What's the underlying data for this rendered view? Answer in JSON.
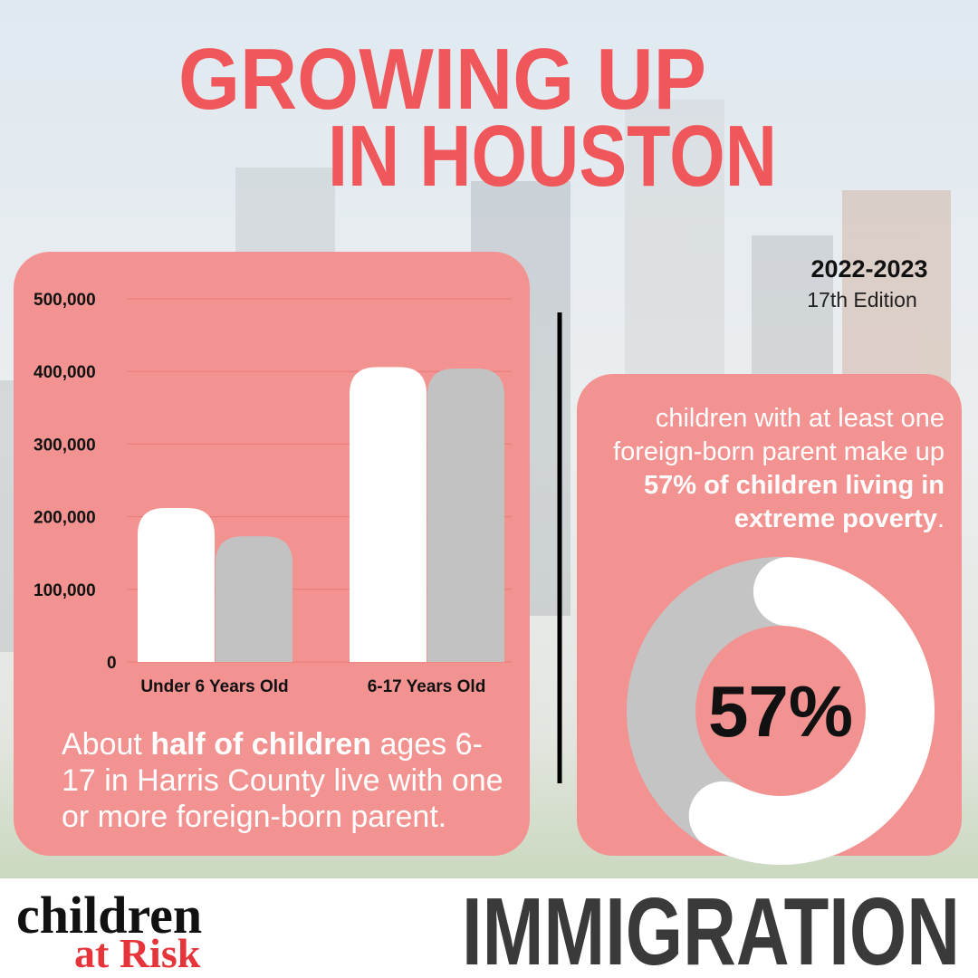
{
  "header": {
    "title_lines": [
      "GROWING UP",
      "IN HOUSTON"
    ],
    "years": "2022-2023",
    "edition": "17th Edition"
  },
  "chart_data": [
    {
      "type": "bar",
      "categories": [
        "Under 6 Years Old",
        "6-17 Years Old"
      ],
      "series": [
        {
          "color": "#ffffff",
          "values": [
            212000,
            406000
          ]
        },
        {
          "color": "#c2c2c2",
          "values": [
            173000,
            404000
          ]
        }
      ],
      "ylim": [
        0,
        500000
      ],
      "yticks": [
        0,
        {
          "value": 100000,
          "label": "100,000"
        },
        {
          "value": 200000,
          "label": "200,000"
        },
        {
          "value": 300000,
          "label": "300,000"
        },
        {
          "value": 400000,
          "label": "400,000"
        },
        {
          "value": 500000,
          "label": "500,000"
        }
      ],
      "grid": true
    },
    {
      "type": "donut",
      "values": [
        57
      ],
      "value_labels": [
        "57%"
      ],
      "color": "#ffffff",
      "track_color": "#c4c4c4",
      "ylim": [
        0,
        100
      ]
    }
  ],
  "notes": {
    "left": [
      "About ",
      "half of children",
      " ages 6-17 in Harris County live with one or more foreign-born parent."
    ],
    "right": [
      "children with at least one foreign-born parent make up ",
      "57% of children living in extreme poverty",
      "."
    ]
  },
  "footer": {
    "logo_lines": [
      "children",
      "at Risk"
    ],
    "topic": "IMMIGRATION"
  }
}
